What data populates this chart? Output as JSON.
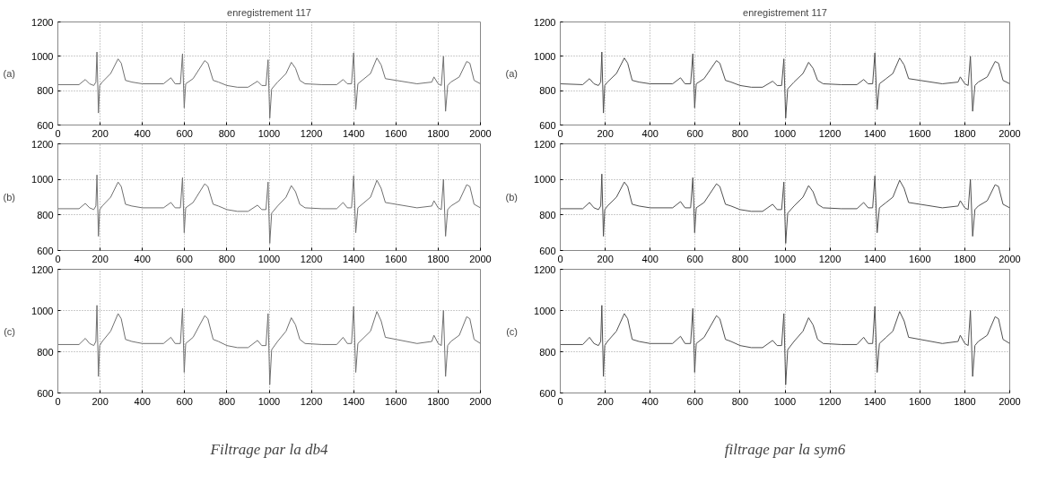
{
  "chart_data": [
    {
      "type": "line",
      "title": "enregistrement 117",
      "ylabel": "(a)",
      "color": "#707070",
      "grid": true,
      "xlim": [
        0,
        2000
      ],
      "ylim": [
        600,
        1200
      ],
      "xticks": [
        0,
        200,
        400,
        600,
        800,
        1000,
        1200,
        1400,
        1600,
        1800,
        2000
      ],
      "yticks": [
        600,
        800,
        1000,
        1200
      ],
      "x": [
        0,
        100,
        130,
        150,
        170,
        180,
        185,
        192,
        198,
        210,
        250,
        285,
        300,
        320,
        350,
        400,
        500,
        535,
        555,
        580,
        590,
        598,
        605,
        640,
        695,
        710,
        735,
        760,
        800,
        850,
        900,
        945,
        965,
        985,
        995,
        1003,
        1012,
        1040,
        1080,
        1105,
        1125,
        1145,
        1170,
        1250,
        1320,
        1350,
        1370,
        1390,
        1400,
        1410,
        1420,
        1450,
        1480,
        1510,
        1530,
        1550,
        1600,
        1700,
        1770,
        1780,
        1800,
        1815,
        1825,
        1835,
        1845,
        1860,
        1900,
        1935,
        1950,
        1970,
        2000
      ],
      "values": [
        835,
        835,
        865,
        840,
        830,
        850,
        1025,
        670,
        830,
        850,
        900,
        985,
        960,
        860,
        850,
        840,
        840,
        875,
        840,
        840,
        1015,
        700,
        840,
        870,
        975,
        960,
        860,
        850,
        830,
        820,
        820,
        855,
        830,
        830,
        980,
        640,
        810,
        850,
        900,
        965,
        930,
        860,
        840,
        835,
        835,
        865,
        840,
        840,
        1020,
        690,
        840,
        870,
        900,
        990,
        950,
        870,
        860,
        840,
        850,
        880,
        840,
        830,
        1000,
        680,
        830,
        850,
        880,
        970,
        960,
        860,
        840
      ]
    },
    {
      "type": "line",
      "ylabel": "(b)",
      "color": "#707070",
      "grid": true,
      "xlim": [
        0,
        2000
      ],
      "ylim": [
        600,
        1200
      ],
      "xticks": [
        0,
        200,
        400,
        600,
        800,
        1000,
        1200,
        1400,
        1600,
        1800,
        2000
      ],
      "yticks": [
        600,
        800,
        1000,
        1200
      ],
      "x": [
        0,
        100,
        130,
        150,
        170,
        180,
        185,
        192,
        198,
        210,
        250,
        285,
        300,
        320,
        350,
        400,
        500,
        535,
        555,
        580,
        590,
        598,
        605,
        640,
        695,
        710,
        735,
        760,
        800,
        850,
        900,
        945,
        965,
        985,
        995,
        1003,
        1012,
        1040,
        1080,
        1105,
        1125,
        1145,
        1170,
        1250,
        1320,
        1350,
        1370,
        1390,
        1400,
        1410,
        1420,
        1450,
        1480,
        1510,
        1530,
        1550,
        1600,
        1700,
        1770,
        1780,
        1800,
        1815,
        1825,
        1835,
        1845,
        1860,
        1900,
        1935,
        1950,
        1970,
        2000
      ],
      "values": [
        835,
        835,
        865,
        840,
        830,
        850,
        1025,
        680,
        830,
        850,
        900,
        985,
        960,
        860,
        850,
        840,
        840,
        870,
        840,
        840,
        1010,
        700,
        840,
        870,
        975,
        960,
        860,
        850,
        830,
        820,
        820,
        855,
        830,
        830,
        985,
        640,
        810,
        850,
        900,
        965,
        930,
        860,
        840,
        835,
        835,
        870,
        840,
        840,
        1020,
        700,
        840,
        870,
        900,
        995,
        950,
        870,
        860,
        840,
        850,
        880,
        840,
        830,
        1000,
        680,
        830,
        850,
        880,
        970,
        960,
        860,
        840
      ]
    },
    {
      "type": "line",
      "ylabel": "(c)",
      "color": "#707070",
      "grid": true,
      "xlim": [
        0,
        2000
      ],
      "ylim": [
        600,
        1200
      ],
      "xticks": [
        0,
        200,
        400,
        600,
        800,
        1000,
        1200,
        1400,
        1600,
        1800,
        2000
      ],
      "yticks": [
        600,
        800,
        1000,
        1200
      ],
      "annotations": [
        "Filtrage par la db4"
      ],
      "x": [
        0,
        100,
        130,
        150,
        170,
        180,
        185,
        192,
        198,
        210,
        250,
        285,
        300,
        320,
        350,
        400,
        500,
        535,
        555,
        580,
        590,
        598,
        605,
        640,
        695,
        710,
        735,
        760,
        800,
        850,
        900,
        945,
        965,
        985,
        995,
        1003,
        1012,
        1040,
        1080,
        1105,
        1125,
        1145,
        1170,
        1250,
        1320,
        1350,
        1370,
        1390,
        1400,
        1410,
        1420,
        1450,
        1480,
        1510,
        1530,
        1550,
        1600,
        1700,
        1770,
        1780,
        1800,
        1815,
        1825,
        1835,
        1845,
        1860,
        1900,
        1935,
        1950,
        1970,
        2000
      ],
      "values": [
        835,
        835,
        865,
        840,
        830,
        850,
        1025,
        680,
        830,
        850,
        900,
        985,
        960,
        860,
        850,
        840,
        840,
        870,
        840,
        840,
        1010,
        700,
        840,
        870,
        975,
        960,
        860,
        850,
        830,
        820,
        820,
        855,
        830,
        830,
        985,
        640,
        810,
        850,
        900,
        965,
        930,
        860,
        840,
        835,
        835,
        870,
        840,
        840,
        1020,
        700,
        840,
        870,
        900,
        995,
        950,
        870,
        860,
        840,
        850,
        880,
        840,
        830,
        1000,
        680,
        830,
        850,
        880,
        970,
        960,
        860,
        840
      ]
    },
    {
      "type": "line",
      "title": "enregistrement 117",
      "ylabel": "(a)",
      "color": "#505050",
      "grid": true,
      "xlim": [
        0,
        2000
      ],
      "ylim": [
        600,
        1200
      ],
      "xticks": [
        0,
        200,
        400,
        600,
        800,
        1000,
        1200,
        1400,
        1600,
        1800,
        2000
      ],
      "yticks": [
        600,
        800,
        1000,
        1200
      ],
      "x": [
        0,
        100,
        130,
        150,
        170,
        180,
        185,
        192,
        198,
        210,
        250,
        285,
        300,
        320,
        350,
        400,
        500,
        535,
        555,
        580,
        590,
        598,
        605,
        640,
        695,
        710,
        735,
        760,
        800,
        850,
        900,
        945,
        965,
        985,
        995,
        1003,
        1012,
        1040,
        1080,
        1105,
        1125,
        1145,
        1170,
        1250,
        1320,
        1350,
        1370,
        1390,
        1400,
        1410,
        1420,
        1450,
        1480,
        1510,
        1530,
        1550,
        1600,
        1700,
        1770,
        1780,
        1800,
        1815,
        1825,
        1835,
        1845,
        1860,
        1900,
        1935,
        1950,
        1970,
        2000
      ],
      "values": [
        840,
        835,
        870,
        840,
        830,
        850,
        1025,
        670,
        830,
        850,
        900,
        990,
        960,
        860,
        850,
        840,
        840,
        875,
        840,
        840,
        1015,
        700,
        840,
        870,
        975,
        960,
        860,
        850,
        830,
        820,
        820,
        855,
        830,
        830,
        985,
        640,
        810,
        850,
        900,
        965,
        930,
        860,
        840,
        835,
        835,
        865,
        840,
        840,
        1020,
        690,
        840,
        870,
        900,
        990,
        950,
        870,
        860,
        840,
        850,
        880,
        840,
        830,
        1000,
        680,
        830,
        850,
        880,
        970,
        960,
        860,
        840
      ]
    },
    {
      "type": "line",
      "ylabel": "(b)",
      "color": "#505050",
      "grid": true,
      "xlim": [
        0,
        2000
      ],
      "ylim": [
        600,
        1200
      ],
      "xticks": [
        0,
        200,
        400,
        600,
        800,
        1000,
        1200,
        1400,
        1600,
        1800,
        2000
      ],
      "yticks": [
        600,
        800,
        1000,
        1200
      ],
      "x": [
        0,
        100,
        130,
        150,
        170,
        180,
        185,
        192,
        198,
        210,
        250,
        285,
        300,
        320,
        350,
        400,
        500,
        535,
        555,
        580,
        590,
        598,
        605,
        640,
        695,
        710,
        735,
        760,
        800,
        850,
        900,
        945,
        965,
        985,
        995,
        1003,
        1012,
        1040,
        1080,
        1105,
        1125,
        1145,
        1170,
        1250,
        1320,
        1350,
        1370,
        1390,
        1400,
        1410,
        1420,
        1450,
        1480,
        1510,
        1530,
        1550,
        1600,
        1700,
        1770,
        1780,
        1800,
        1815,
        1825,
        1835,
        1845,
        1860,
        1900,
        1935,
        1950,
        1970,
        2000
      ],
      "values": [
        835,
        835,
        870,
        840,
        830,
        850,
        1030,
        680,
        830,
        850,
        900,
        985,
        960,
        860,
        850,
        840,
        840,
        875,
        840,
        840,
        1010,
        700,
        840,
        870,
        975,
        960,
        860,
        850,
        830,
        820,
        820,
        860,
        830,
        830,
        985,
        640,
        810,
        850,
        900,
        965,
        930,
        860,
        840,
        835,
        835,
        870,
        840,
        840,
        1020,
        700,
        840,
        870,
        900,
        995,
        950,
        870,
        860,
        840,
        850,
        880,
        840,
        830,
        1000,
        680,
        830,
        850,
        880,
        970,
        960,
        860,
        840
      ]
    },
    {
      "type": "line",
      "ylabel": "(c)",
      "color": "#505050",
      "grid": true,
      "xlim": [
        0,
        2000
      ],
      "ylim": [
        600,
        1200
      ],
      "xticks": [
        0,
        200,
        400,
        600,
        800,
        1000,
        1200,
        1400,
        1600,
        1800,
        2000
      ],
      "yticks": [
        600,
        800,
        1000,
        1200
      ],
      "annotations": [
        "filtrage par la sym6"
      ],
      "x": [
        0,
        100,
        130,
        150,
        170,
        180,
        185,
        192,
        198,
        210,
        250,
        285,
        300,
        320,
        350,
        400,
        500,
        535,
        555,
        580,
        590,
        598,
        605,
        640,
        695,
        710,
        735,
        760,
        800,
        850,
        900,
        945,
        965,
        985,
        995,
        1003,
        1012,
        1040,
        1080,
        1105,
        1125,
        1145,
        1170,
        1250,
        1320,
        1350,
        1370,
        1390,
        1400,
        1410,
        1420,
        1450,
        1480,
        1510,
        1530,
        1550,
        1600,
        1700,
        1770,
        1780,
        1800,
        1815,
        1825,
        1835,
        1845,
        1860,
        1900,
        1935,
        1950,
        1970,
        2000
      ],
      "values": [
        835,
        835,
        870,
        840,
        830,
        850,
        1025,
        680,
        830,
        850,
        900,
        985,
        960,
        860,
        850,
        840,
        840,
        875,
        840,
        840,
        1010,
        700,
        840,
        870,
        975,
        960,
        860,
        850,
        830,
        820,
        820,
        855,
        830,
        830,
        985,
        640,
        810,
        850,
        900,
        965,
        930,
        860,
        840,
        835,
        835,
        870,
        840,
        840,
        1020,
        700,
        840,
        870,
        900,
        995,
        950,
        870,
        860,
        840,
        850,
        880,
        840,
        830,
        1000,
        680,
        830,
        850,
        880,
        970,
        960,
        860,
        840
      ]
    }
  ]
}
